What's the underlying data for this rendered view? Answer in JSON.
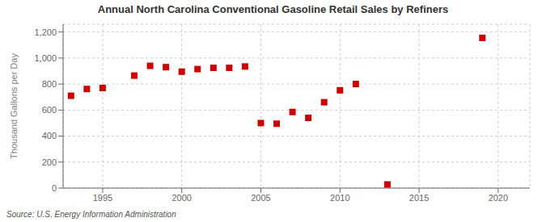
{
  "chart_data": {
    "type": "scatter",
    "title": "Annual North Carolina Conventional Gasoline Retail Sales by Refiners",
    "y_label": "Thousand Gallons per Day",
    "annotations": [
      "Source: U.S. Energy Information Administration"
    ],
    "x": [
      1993,
      1994,
      1995,
      1997,
      1998,
      1999,
      2000,
      2001,
      2002,
      2003,
      2004,
      2005,
      2006,
      2007,
      2008,
      2009,
      2010,
      2011,
      2013,
      2019
    ],
    "values": [
      710,
      762,
      770,
      865,
      940,
      930,
      895,
      915,
      925,
      925,
      935,
      500,
      495,
      585,
      540,
      660,
      752,
      800,
      28,
      1155
    ],
    "color": "#cc0000",
    "marker": "square",
    "xlim": [
      1992.5,
      2022
    ],
    "ylim": [
      0,
      1260
    ],
    "xticks": [
      1995,
      2000,
      2005,
      2010,
      2015,
      2020
    ],
    "yticks": [
      0,
      200,
      400,
      600,
      800,
      {
        "value": 1000,
        "label": "1,000"
      },
      {
        "value": 1200,
        "label": "1,200"
      }
    ],
    "grid": true
  }
}
